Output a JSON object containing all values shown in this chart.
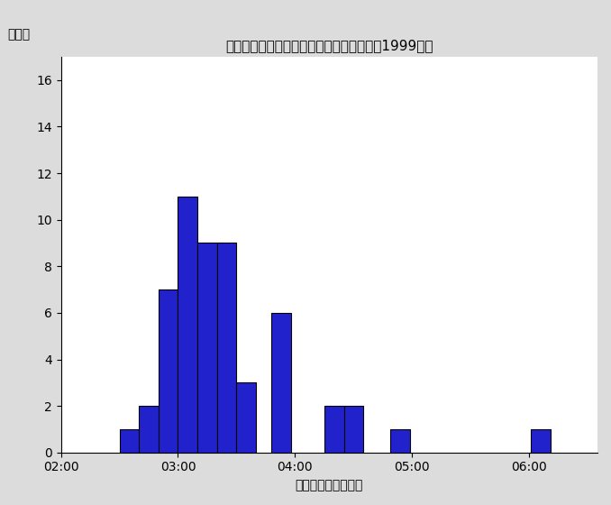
{
  "title": "パフォーマンス時間ごとの歌手数の分布（1999年）",
  "ylabel": "歌手数",
  "xlabel": "パフォーマンス時間",
  "bar_color": "#2222CC",
  "bar_edgecolor": "#000000",
  "background_color": "#dcdcdc",
  "plot_background": "#ffffff",
  "ylim": [
    0,
    17
  ],
  "yticks": [
    0,
    2,
    4,
    6,
    8,
    10,
    12,
    14,
    16
  ],
  "xlim": [
    120,
    395
  ],
  "xtick_secs": [
    120,
    180,
    240,
    300,
    360
  ],
  "xtick_labels": [
    "02:00",
    "03:00",
    "04:00",
    "05:00",
    "06:00"
  ],
  "bars": [
    [
      150,
      1
    ],
    [
      160,
      2
    ],
    [
      170,
      7
    ],
    [
      180,
      11
    ],
    [
      190,
      9
    ],
    [
      200,
      9
    ],
    [
      210,
      3
    ],
    [
      228,
      6
    ],
    [
      255,
      2
    ],
    [
      265,
      2
    ],
    [
      289,
      1
    ],
    [
      361,
      1
    ]
  ],
  "bin_width": 10,
  "title_fontsize": 11,
  "label_fontsize": 10,
  "tick_fontsize": 10
}
